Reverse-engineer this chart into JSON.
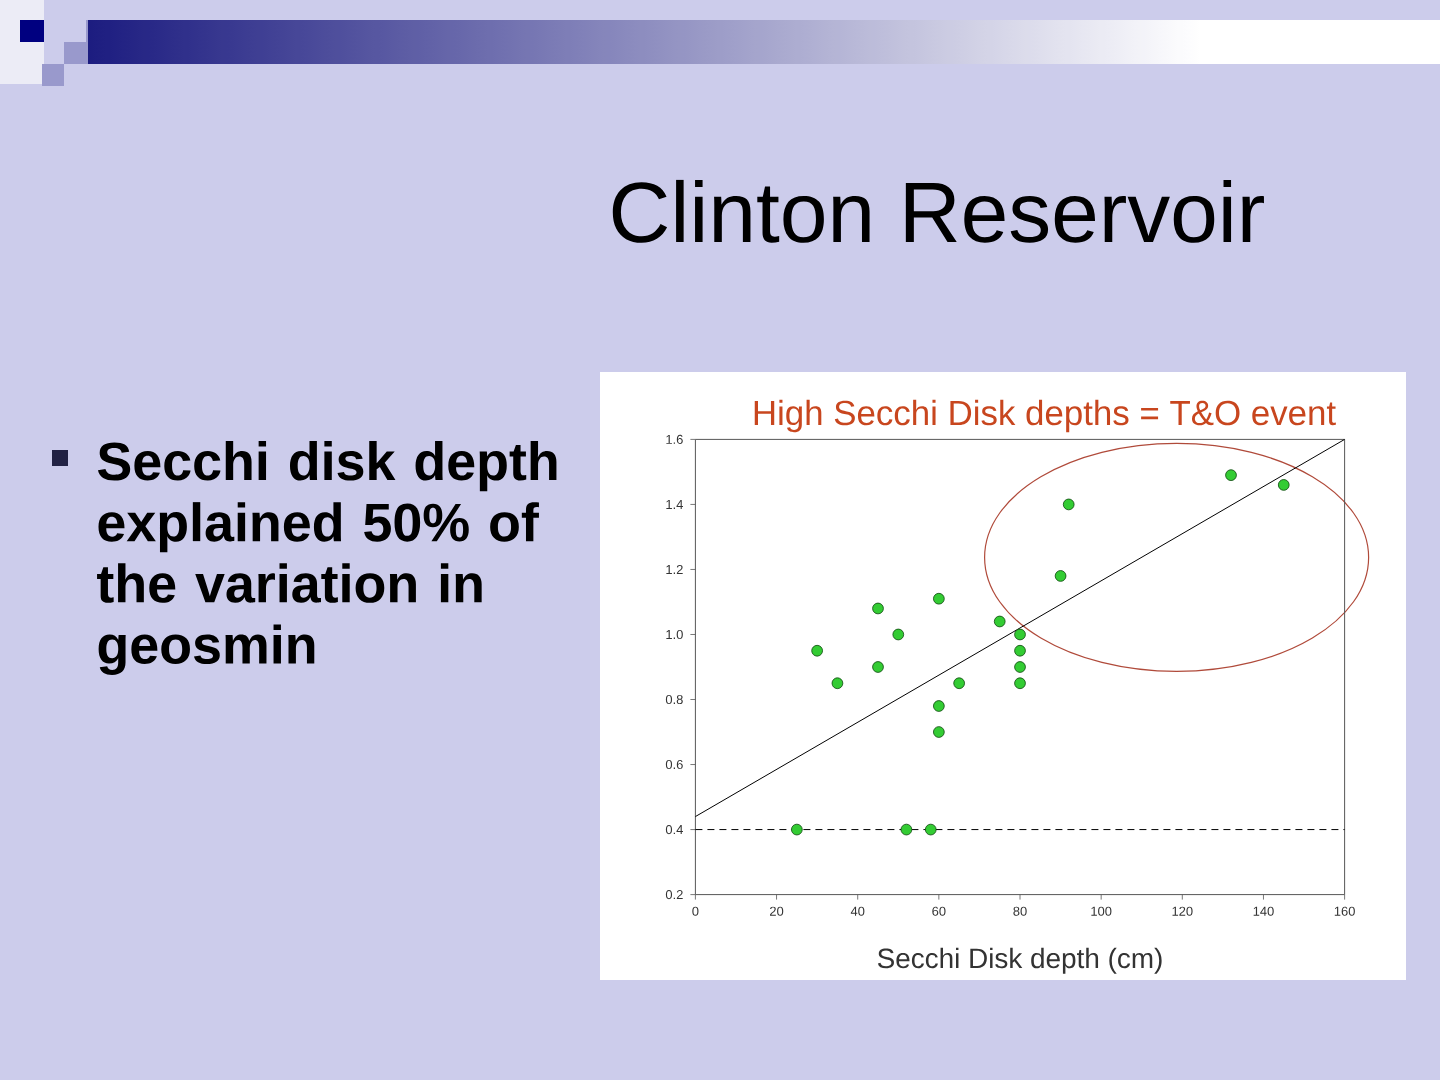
{
  "chart_data": {
    "type": "scatter",
    "title": "Clinton Reservoir",
    "xlabel": "Secchi Disk depth (cm)",
    "annotations": [
      "Secchi disk depth explained 50% of the variation in geosmin",
      "High Secchi Disk depths = T&O event"
    ],
    "marker": "circle",
    "series": [
      {
        "color": "#33cc33",
        "x": [
          25,
          30,
          35,
          45,
          45,
          50,
          52,
          58,
          60,
          60,
          60,
          65,
          75,
          80,
          80,
          80,
          80,
          90,
          92,
          132,
          145
        ],
        "values": [
          0.4,
          0.95,
          0.85,
          1.08,
          0.9,
          1.0,
          0.4,
          0.4,
          1.11,
          0.78,
          0.7,
          0.85,
          1.04,
          1.0,
          0.95,
          0.9,
          0.85,
          1.18,
          1.4,
          1.49,
          1.46
        ]
      },
      {
        "type": "line",
        "color": "#000000",
        "marker": "none",
        "x": [
          0,
          160
        ],
        "values": [
          0.44,
          1.6
        ]
      }
    ],
    "ref_lines": [
      {
        "axis": "y",
        "value": 0.4,
        "color": "#000000",
        "line_style": "dashed"
      }
    ],
    "xlim": [
      0,
      160
    ],
    "ylim": [
      0.2,
      1.6
    ],
    "xticks": [
      0,
      20,
      40,
      60,
      80,
      100,
      120,
      140,
      160
    ],
    "yticks": [
      0.2,
      0.4,
      0.6,
      0.8,
      {
        "value": 1,
        "label": "1.0"
      },
      1.2,
      1.4,
      1.6
    ]
  }
}
